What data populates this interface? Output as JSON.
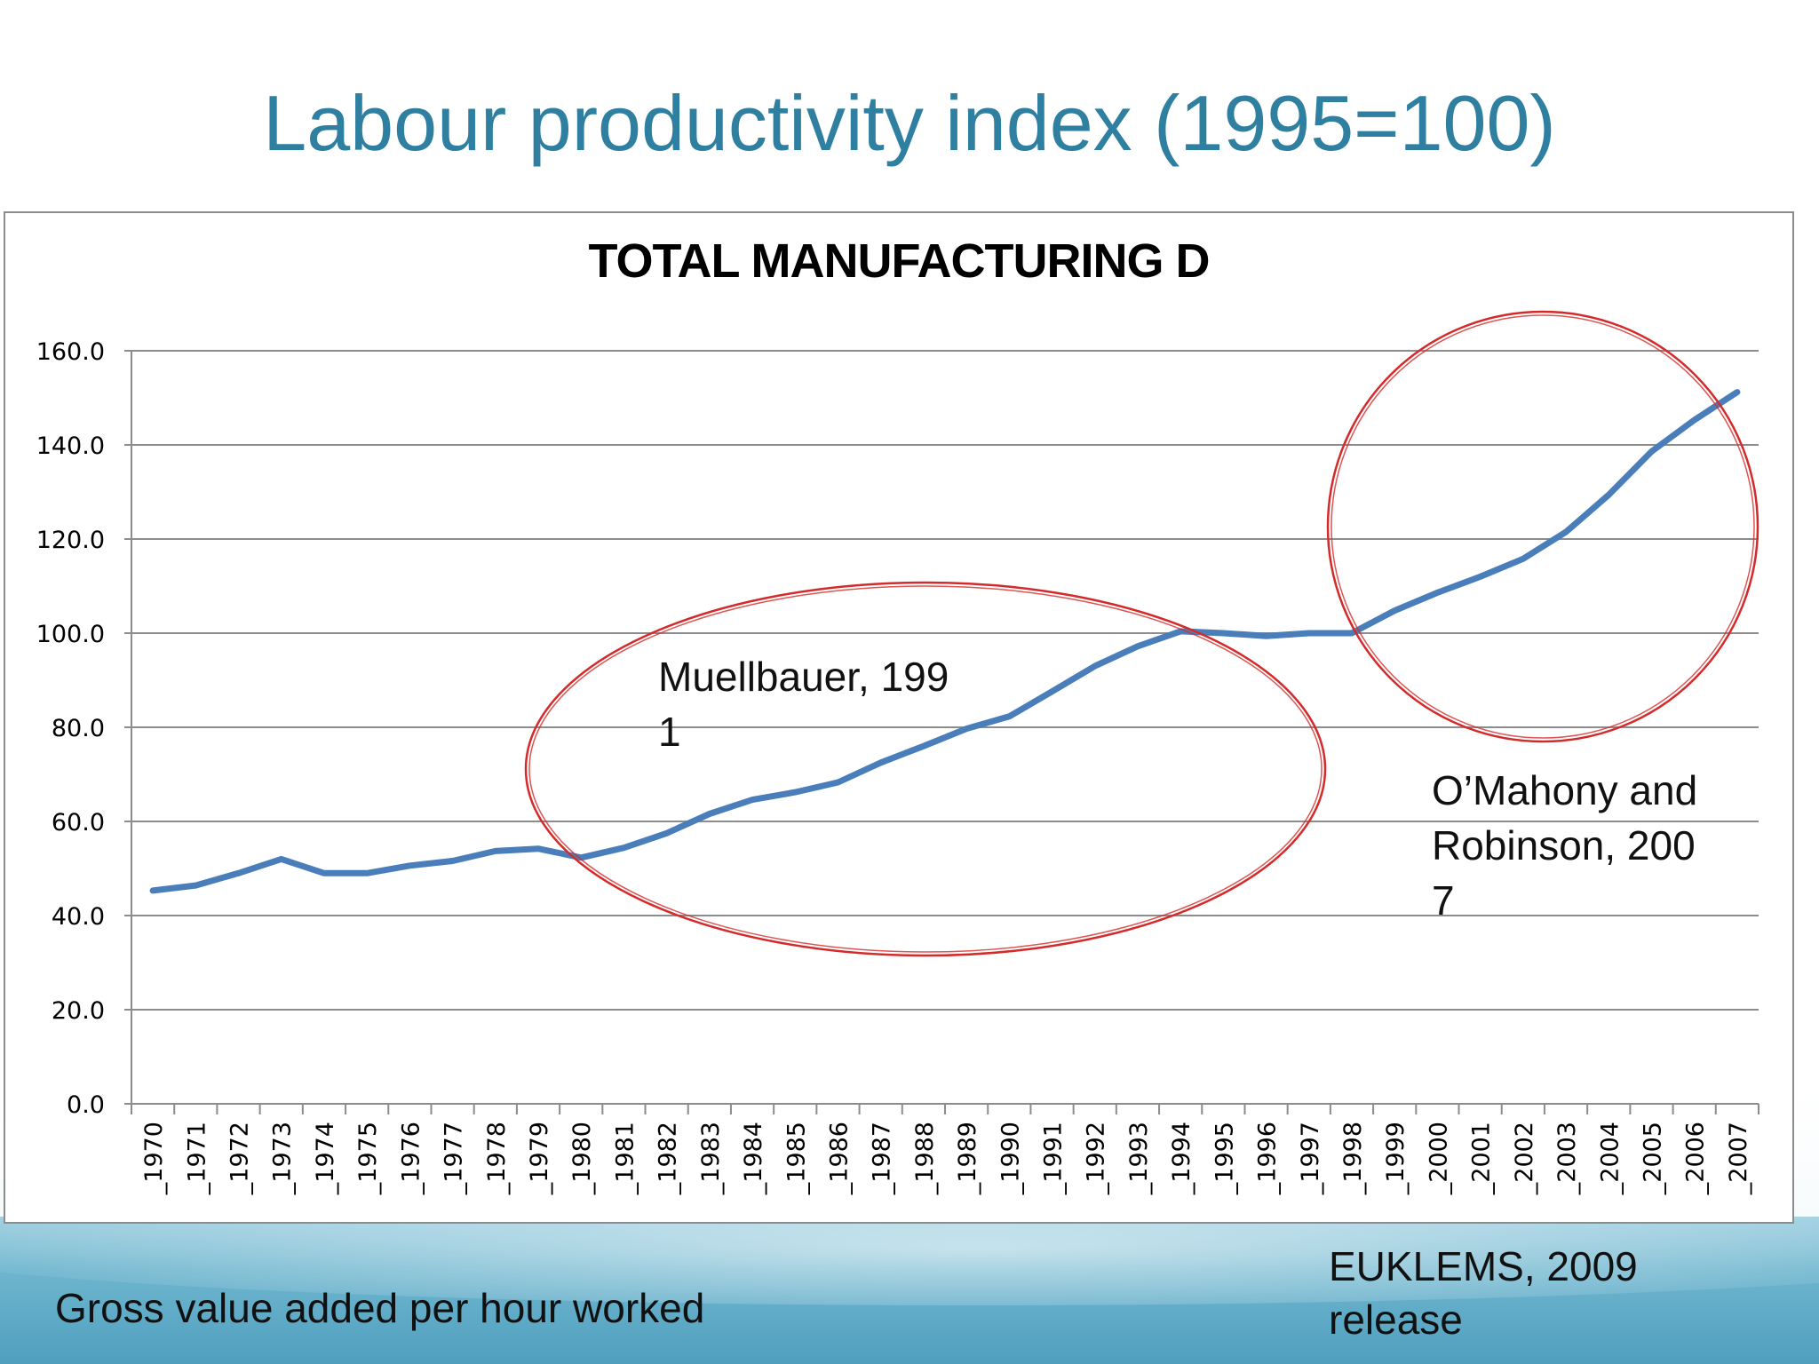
{
  "slide": {
    "title": "Labour productivity index (1995=100)",
    "caption_left": "Gross value added per hour worked",
    "caption_right_line1": "EUKLEMS, 2009",
    "caption_right_line2": "release"
  },
  "colors": {
    "title": "#2f7fa1",
    "series_line": "#4a7ebb",
    "annotation_circle": "#d42a2a",
    "gridline": "#8c8c8c"
  },
  "chart_data": {
    "type": "line",
    "title": "TOTAL MANUFACTURING D",
    "xlabel": "",
    "ylabel": "",
    "ylim": [
      0,
      160
    ],
    "yticks": [
      "0.0",
      "20.0",
      "40.0",
      "60.0",
      "80.0",
      "100.0",
      "120.0",
      "140.0",
      "160.0"
    ],
    "grid": true,
    "legend": "none",
    "categories": [
      "_1970",
      "_1971",
      "_1972",
      "_1973",
      "_1974",
      "_1975",
      "_1976",
      "_1977",
      "_1978",
      "_1979",
      "_1980",
      "_1981",
      "_1982",
      "_1983",
      "_1984",
      "_1985",
      "_1986",
      "_1987",
      "_1988",
      "_1989",
      "_1990",
      "_1991",
      "_1992",
      "_1993",
      "_1994",
      "_1995",
      "_1996",
      "_1997",
      "_1998",
      "_1999",
      "_2000",
      "_2001",
      "_2002",
      "_2003",
      "_2004",
      "_2005",
      "_2006",
      "_2007"
    ],
    "series": [
      {
        "values": [
          45.3,
          46.4,
          49.0,
          52.0,
          49.0,
          49.0,
          50.6,
          51.6,
          53.7,
          54.2,
          52.3,
          54.4,
          57.5,
          61.6,
          64.6,
          66.2,
          68.3,
          72.5,
          76.0,
          79.7,
          82.3,
          87.6,
          93.0,
          97.2,
          100.4,
          100.0,
          99.4,
          100.0,
          100.0,
          104.8,
          108.6,
          112.0,
          115.8,
          121.5,
          129.4,
          138.6,
          145.3,
          151.2
        ]
      }
    ],
    "annotations": [
      {
        "line1": "Muellbauer, 199",
        "line2": "1"
      },
      {
        "line1": "O’Mahony and",
        "line2": "Robinson, 200",
        "line3": "7"
      }
    ]
  }
}
